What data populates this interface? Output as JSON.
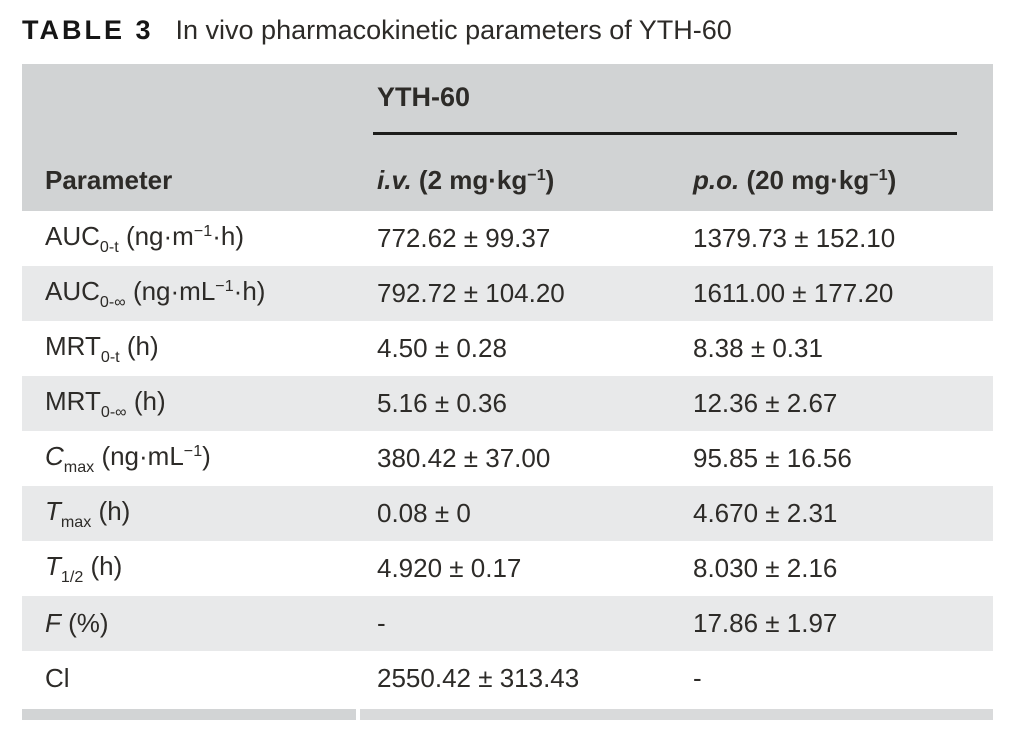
{
  "title": {
    "label": "TABLE 3",
    "text": "In vivo pharmacokinetic parameters of YTH-60"
  },
  "table": {
    "group_header": "YTH-60",
    "columns": {
      "parameter": "Parameter",
      "iv": [
        {
          "t": "i.v.",
          "f": "i"
        },
        {
          "t": " (2 mg·kg"
        },
        {
          "t": "−1",
          "f": "sup"
        },
        {
          "t": ")"
        }
      ],
      "po": [
        {
          "t": "p.o.",
          "f": "i"
        },
        {
          "t": " (20 mg·kg"
        },
        {
          "t": "−1",
          "f": "sup"
        },
        {
          "t": ")"
        }
      ]
    },
    "rows": [
      {
        "param": [
          {
            "t": "AUC"
          },
          {
            "t": "0-t",
            "f": "sub"
          },
          {
            "t": " (ng·m"
          },
          {
            "t": "−1",
            "f": "sup"
          },
          {
            "t": "·h)"
          }
        ],
        "iv": "772.62 ± 99.37",
        "po": "1379.73 ± 152.10"
      },
      {
        "param": [
          {
            "t": "AUC"
          },
          {
            "t": "0-∞",
            "f": "sub"
          },
          {
            "t": " (ng·mL"
          },
          {
            "t": "−1",
            "f": "sup"
          },
          {
            "t": "·h)"
          }
        ],
        "iv": "792.72 ± 104.20",
        "po": "1611.00 ± 177.20"
      },
      {
        "param": [
          {
            "t": "MRT"
          },
          {
            "t": "0-t",
            "f": "sub"
          },
          {
            "t": " (h)"
          }
        ],
        "iv": "4.50 ± 0.28",
        "po": "8.38 ± 0.31"
      },
      {
        "param": [
          {
            "t": "MRT"
          },
          {
            "t": "0-∞",
            "f": "sub"
          },
          {
            "t": " (h)"
          }
        ],
        "iv": "5.16 ± 0.36",
        "po": "12.36 ± 2.67"
      },
      {
        "param": [
          {
            "t": "C",
            "f": "i"
          },
          {
            "t": "max",
            "f": "sub"
          },
          {
            "t": " (ng·mL"
          },
          {
            "t": "−1",
            "f": "sup"
          },
          {
            "t": ")"
          }
        ],
        "iv": "380.42 ± 37.00",
        "po": "95.85 ± 16.56"
      },
      {
        "param": [
          {
            "t": "T",
            "f": "i"
          },
          {
            "t": "max",
            "f": "sub"
          },
          {
            "t": " (h)"
          }
        ],
        "iv": "0.08 ± 0",
        "po": "4.670 ± 2.31"
      },
      {
        "param": [
          {
            "t": "T",
            "f": "i"
          },
          {
            "t": "1/2",
            "f": "sub"
          },
          {
            "t": " (h)"
          }
        ],
        "iv": "4.920 ± 0.17",
        "po": "8.030 ± 2.16"
      },
      {
        "param": [
          {
            "t": "F",
            "f": "i"
          },
          {
            "t": " (%)"
          }
        ],
        "iv": "-",
        "po": "17.86 ± 1.97"
      },
      {
        "param": [
          {
            "t": "Cl"
          }
        ],
        "iv": "2550.42 ± 313.43",
        "po": "-"
      }
    ]
  },
  "colors": {
    "text": "#2d2b28",
    "header_bg": "#d1d3d4",
    "row_alt_bg": "#e8e9ea",
    "rule": "#1d1d1b",
    "bottom_rule_left": "#d2d4d5",
    "bottom_rule_right": "#d9dadb"
  }
}
